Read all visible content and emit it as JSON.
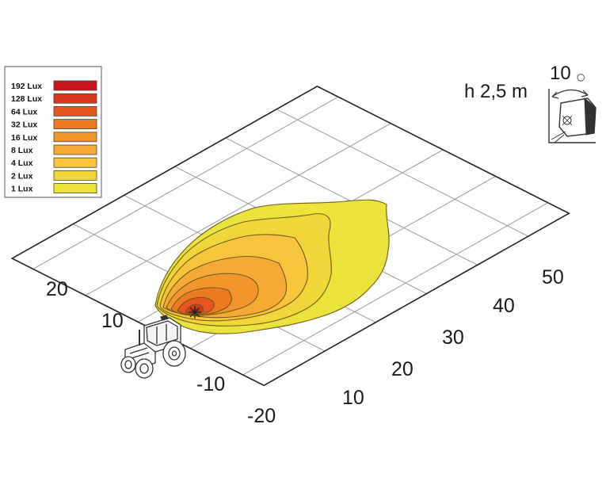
{
  "legend": {
    "items": [
      {
        "label": "192 Lux",
        "color": "#c8141a"
      },
      {
        "label": "128 Lux",
        "color": "#d9361c"
      },
      {
        "label": "64 Lux",
        "color": "#e6541f"
      },
      {
        "label": "32 Lux",
        "color": "#ee7b22"
      },
      {
        "label": "16 Lux",
        "color": "#f2962b"
      },
      {
        "label": "8 Lux",
        "color": "#f5ab33"
      },
      {
        "label": "4 Lux",
        "color": "#f7c63c"
      },
      {
        "label": "2 Lux",
        "color": "#f1d63a"
      },
      {
        "label": "1 Lux",
        "color": "#e9e33c"
      }
    ]
  },
  "mounting": {
    "height_label": "h 2,5 m",
    "angle_label": "10",
    "degree_symbol": "○"
  },
  "axes": {
    "lateral_ticks": [
      "20",
      "10",
      "-10",
      "-20"
    ],
    "forward_ticks": [
      "10",
      "20",
      "30",
      "40",
      "50"
    ]
  }
}
